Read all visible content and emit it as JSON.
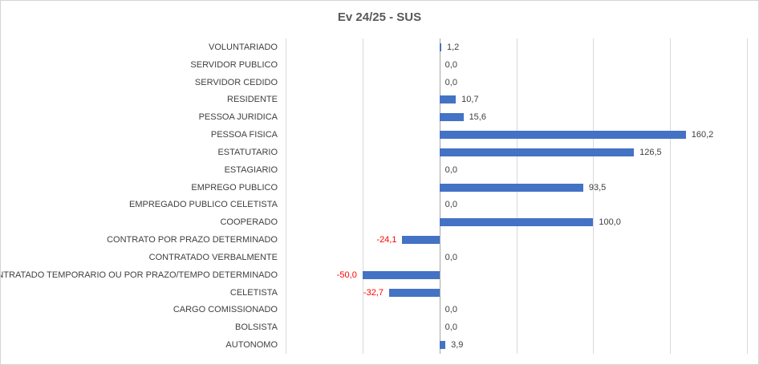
{
  "chart_data": {
    "type": "bar",
    "orientation": "horizontal",
    "title": "Ev 24/25 - SUS",
    "categories": [
      "VOLUNTARIADO",
      "SERVIDOR PUBLICO",
      "SERVIDOR CEDIDO",
      "RESIDENTE",
      "PESSOA JURIDICA",
      "PESSOA FISICA",
      "ESTATUTARIO",
      "ESTAGIARIO",
      "EMPREGO PUBLICO",
      "EMPREGADO PUBLICO CELETISTA",
      "COOPERADO",
      "CONTRATO POR PRAZO DETERMINADO",
      "CONTRATADO VERBALMENTE",
      "CONTRATADO TEMPORARIO OU POR PRAZO/TEMPO DETERMINADO",
      "CELETISTA",
      "CARGO COMISSIONADO",
      "BOLSISTA",
      "AUTONOMO"
    ],
    "values": [
      1.2,
      0.0,
      0.0,
      10.7,
      15.6,
      160.2,
      126.5,
      0.0,
      93.5,
      0.0,
      100.0,
      -24.1,
      0.0,
      -50.0,
      -32.7,
      0.0,
      0.0,
      3.9
    ],
    "value_labels": [
      "1,2",
      "0,0",
      "0,0",
      "10,7",
      "15,6",
      "160,2",
      "126,5",
      "0,0",
      "93,5",
      "0,0",
      "100,0",
      "-24,1",
      "0,0",
      "-50,0",
      "-32,7",
      "0,0",
      "0,0",
      "3,9"
    ],
    "xlabel": "",
    "ylabel": "",
    "xlim": [
      -100,
      200
    ],
    "grid_step": 50,
    "grid": true,
    "x_tick_labels_visible": false,
    "legend_position": "none"
  },
  "colors": {
    "bar": "#4472C4",
    "gridline": "#D9D9D9",
    "zero_axis": "#A6A6A6",
    "title": "#595959",
    "category_label": "#404040",
    "value_label": "#404040",
    "negative_value_label": "#FF0000",
    "chart_border": "#D4D4D4",
    "background": "#FFFFFF"
  }
}
